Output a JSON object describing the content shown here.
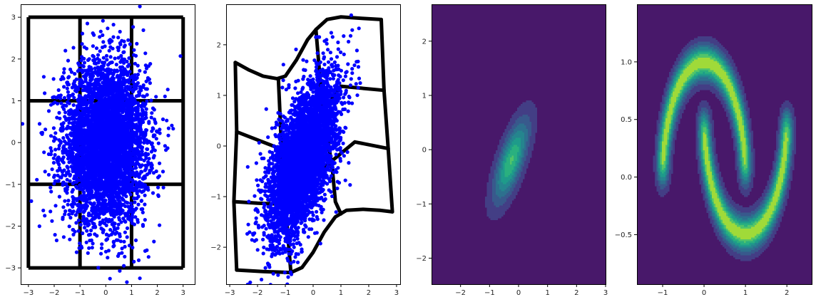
{
  "chart_data": [
    {
      "type": "scatter",
      "xlim": [
        -3.3,
        3.45
      ],
      "ylim": [
        -3.39,
        3.31
      ],
      "xticks": [
        "−3",
        "−2",
        "−1",
        "0",
        "1",
        "2",
        "3"
      ],
      "xtick_values": [
        -3,
        -2,
        -1,
        0,
        1,
        2,
        3
      ],
      "yticks": [
        "−3",
        "−2",
        "−1",
        "0",
        "1",
        "2",
        "3"
      ],
      "ytick_values": [
        -3,
        -2,
        -1,
        0,
        1,
        2,
        3
      ],
      "grid_lines": {
        "x": [
          -3,
          -1,
          1,
          3
        ],
        "y": [
          -3,
          -1,
          1,
          3
        ],
        "range": [
          -3,
          3
        ],
        "color": "#000000"
      },
      "series": [
        {
          "distribution": "gaussian",
          "mean": [
            0,
            0
          ],
          "std": [
            0.8,
            0.95
          ],
          "corr": 0,
          "n": 4500,
          "color": "#0000ff"
        }
      ]
    },
    {
      "type": "scatter",
      "xlim": [
        -3.13,
        3.13
      ],
      "ylim": [
        -2.73,
        2.8
      ],
      "xticks": [
        "−3",
        "−2",
        "−1",
        "0",
        "1",
        "2",
        "3"
      ],
      "xtick_values": [
        -3,
        -2,
        -1,
        0,
        1,
        2,
        3
      ],
      "yticks": [
        "−2",
        "−1",
        "0",
        "1",
        "2"
      ],
      "ytick_values": [
        -2,
        -1,
        0,
        1,
        2
      ],
      "warped_grid": [
        [
          [
            -2.8,
            1.65
          ],
          [
            -2.3,
            1.5
          ],
          [
            -1.8,
            1.38
          ],
          [
            -1.3,
            1.33
          ],
          [
            -1.0,
            1.38
          ],
          [
            -0.6,
            1.7
          ],
          [
            -0.2,
            2.1
          ],
          [
            0.1,
            2.3
          ],
          [
            0.5,
            2.5
          ],
          [
            1.0,
            2.55
          ],
          [
            1.8,
            2.52
          ],
          [
            2.45,
            2.5
          ]
        ],
        [
          [
            -2.75,
            -2.45
          ],
          [
            -1.8,
            -2.48
          ],
          [
            -0.8,
            -2.5
          ],
          [
            -0.4,
            -2.4
          ],
          [
            0,
            -2.1
          ],
          [
            0.4,
            -1.7
          ],
          [
            0.8,
            -1.4
          ],
          [
            1.2,
            -1.27
          ],
          [
            1.8,
            -1.25
          ],
          [
            2.4,
            -1.27
          ],
          [
            2.85,
            -1.3
          ]
        ],
        [
          [
            -2.8,
            1.65
          ],
          [
            -2.75,
            0.3
          ],
          [
            -2.85,
            -1.1
          ],
          [
            -2.75,
            -2.45
          ]
        ],
        [
          [
            2.45,
            2.5
          ],
          [
            2.55,
            1.1
          ],
          [
            2.7,
            -0.05
          ],
          [
            2.85,
            -1.3
          ]
        ],
        [
          [
            -1.25,
            1.33
          ],
          [
            -1.1,
            -0.5
          ],
          [
            -0.8,
            -2.5
          ]
        ],
        [
          [
            0.1,
            2.3
          ],
          [
            0.3,
            1.0
          ],
          [
            0.7,
            -0.5
          ],
          [
            0.8,
            -1.1
          ],
          [
            1.0,
            -1.34
          ]
        ],
        [
          [
            -2.75,
            0.28
          ],
          [
            -2.0,
            0.12
          ],
          [
            -1.2,
            -0.05
          ],
          [
            0,
            0.4
          ],
          [
            1.0,
            1.18
          ],
          [
            2.55,
            1.1
          ]
        ],
        [
          [
            -2.85,
            -1.1
          ],
          [
            -2.0,
            -1.13
          ],
          [
            -1.1,
            -1.15
          ],
          [
            0,
            -0.6
          ],
          [
            1.5,
            0.08
          ],
          [
            2.7,
            -0.05
          ]
        ]
      ],
      "series": [
        {
          "distribution": "gaussian",
          "mean": [
            -0.35,
            -0.25
          ],
          "std": [
            0.62,
            0.78
          ],
          "corr": 0.6,
          "n": 4500,
          "color": "#0000ff"
        }
      ]
    },
    {
      "type": "heatmap",
      "style": "filled contour",
      "xlim": [
        -3,
        3
      ],
      "ylim": [
        -2.48,
        2.68
      ],
      "xticks": [
        "−2",
        "−1",
        "0",
        "1",
        "2",
        "3"
      ],
      "xtick_values": [
        -2,
        -1,
        0,
        1,
        2,
        3
      ],
      "yticks": [
        "−2",
        "−1",
        "0",
        "1",
        "2"
      ],
      "ytick_values": [
        -2,
        -1,
        0,
        1,
        2
      ],
      "density": {
        "distribution": "gaussian",
        "mean": [
          -0.25,
          -0.2
        ],
        "std": [
          0.4,
          0.5
        ],
        "corr": 0.7,
        "peak_level": 0.8
      }
    },
    {
      "type": "heatmap",
      "style": "filled contour",
      "xlim": [
        -1.62,
        2.6
      ],
      "ylim": [
        -0.93,
        1.5
      ],
      "xticks": [
        "−1",
        "0",
        "1",
        "2"
      ],
      "xtick_values": [
        -1,
        0,
        1,
        2
      ],
      "yticks": [
        "−0.5",
        "0.0",
        "0.5",
        "1.0"
      ],
      "ytick_values": [
        -0.5,
        0,
        0.5,
        1
      ],
      "density": {
        "distribution": "two moons",
        "noise_std": 0.1,
        "peak_level": 1.0
      }
    }
  ],
  "colormap": [
    "#48186a",
    "#433e85",
    "#38598c",
    "#2d708e",
    "#25858e",
    "#1e9b8a",
    "#2ab07f",
    "#52c569",
    "#a0da39"
  ]
}
